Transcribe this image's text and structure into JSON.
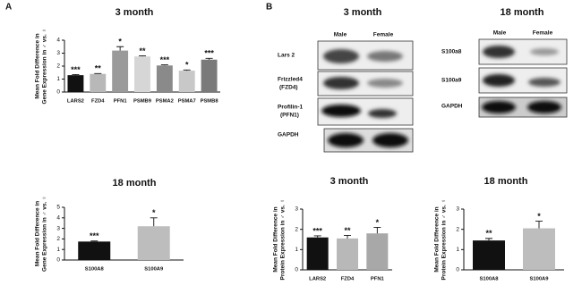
{
  "panel_labels": [
    "A",
    "B"
  ],
  "chart_data": [
    {
      "type": "bar",
      "title": "3 month",
      "ylabel": [
        "Mean Fold Difference in",
        "Gene Expression in ♂ vs. ♀"
      ],
      "categories": [
        "LARS2",
        "FZD4",
        "PFN1",
        "PSMB9",
        "PSMA2",
        "PSMA7",
        "PSMB8"
      ],
      "values": [
        1.3,
        1.4,
        3.2,
        2.75,
        2.05,
        1.65,
        2.5
      ],
      "errors": [
        0.05,
        0.03,
        0.3,
        0.05,
        0.05,
        0.05,
        0.1
      ],
      "annotations": [
        "***",
        "**",
        "*",
        "**",
        "***",
        "*",
        "***"
      ],
      "colors": [
        "#111111",
        "#b8b8b8",
        "#9a9a9a",
        "#d6d6d6",
        "#8a8a8a",
        "#c8c8c8",
        "#7a7a7a"
      ],
      "ylim": [
        0,
        4
      ],
      "yticks": [
        0,
        1,
        2,
        3,
        4
      ]
    },
    {
      "type": "bar",
      "title": "18 month",
      "ylabel": [
        "Mean Fold Difference in",
        "Gene Expression in ♂ vs. ♀"
      ],
      "categories": [
        "S100A8",
        "S100A9"
      ],
      "values": [
        1.75,
        3.2
      ],
      "errors": [
        0.05,
        0.8
      ],
      "annotations": [
        "***",
        "*"
      ],
      "colors": [
        "#111111",
        "#bdbdbd"
      ],
      "ylim": [
        0,
        5
      ],
      "yticks": [
        0,
        1,
        2,
        3,
        4,
        5
      ]
    },
    {
      "type": "bar",
      "title": "3 month",
      "ylabel": [
        "Mean Fold Difference in",
        "Protein Expression in ♂ vs. ♀"
      ],
      "categories": [
        "LARS2",
        "FZD4",
        "PFN1"
      ],
      "values": [
        1.6,
        1.55,
        1.8
      ],
      "errors": [
        0.08,
        0.15,
        0.3
      ],
      "annotations": [
        "***",
        "**",
        "*"
      ],
      "colors": [
        "#111111",
        "#b8b8b8",
        "#a8a8a8"
      ],
      "ylim": [
        0,
        3
      ],
      "yticks": [
        0,
        1,
        2,
        3
      ]
    },
    {
      "type": "bar",
      "title": "18 month",
      "ylabel": [
        "Mean Fold Difference in",
        "Protein Expression in ♂ vs. ♀"
      ],
      "categories": [
        "S100A8",
        "S100A9"
      ],
      "values": [
        1.45,
        2.05
      ],
      "errors": [
        0.1,
        0.35
      ],
      "annotations": [
        "**",
        "*"
      ],
      "colors": [
        "#111111",
        "#bdbdbd"
      ],
      "ylim": [
        0,
        3
      ],
      "yticks": [
        0,
        1,
        2,
        3
      ]
    }
  ],
  "blots": [
    {
      "title": "3 month",
      "columns": [
        "Male",
        "Female"
      ],
      "rows": [
        "Lars 2",
        "Frizzled4",
        "(FZD4)",
        "Profilin-1",
        "(PFN1)",
        "GAPDH"
      ]
    },
    {
      "title": "18 month",
      "columns": [
        "Male",
        "Female"
      ],
      "rows": [
        "S100a8",
        "S100a9",
        "GAPDH"
      ]
    }
  ]
}
